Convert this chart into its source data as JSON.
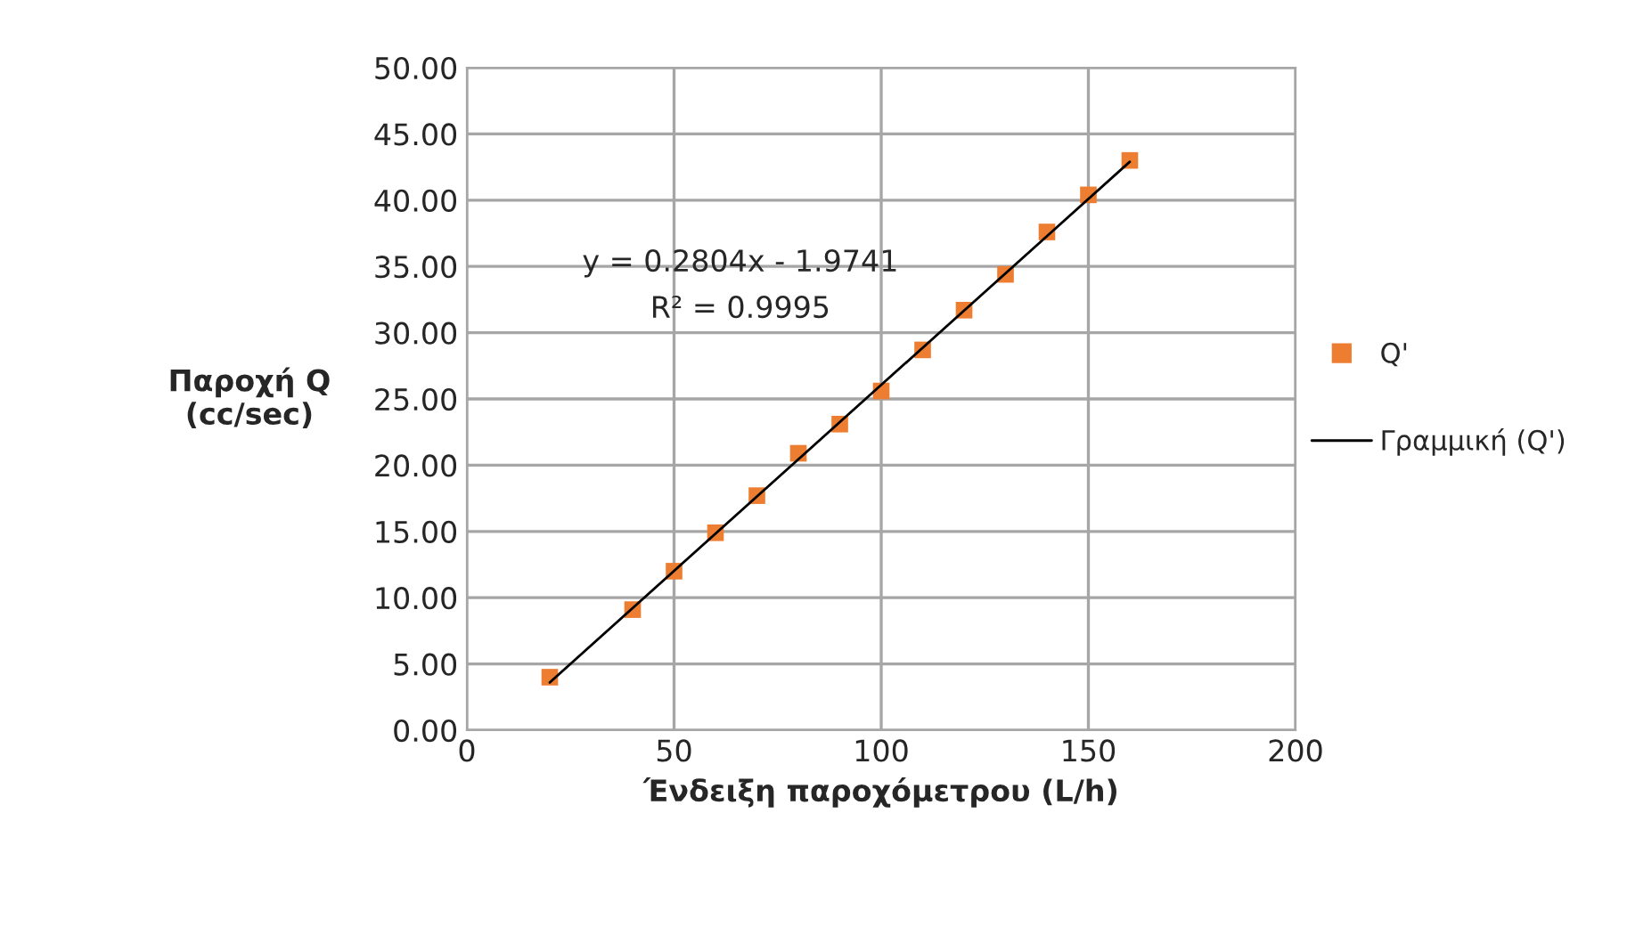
{
  "chart_data": {
    "type": "scatter",
    "xlabel": "Ένδειξη παροχόμετρου (L/h)",
    "ylabel": "Παροχή Q\n(cc/sec)",
    "x": [
      20,
      40,
      50,
      60,
      70,
      80,
      90,
      100,
      110,
      120,
      130,
      140,
      150,
      160
    ],
    "series": [
      {
        "name": "Q'",
        "type": "scatter",
        "color": "#ed7d31",
        "marker": "square",
        "values": [
          4.0,
          9.1,
          12.0,
          14.9,
          17.7,
          20.9,
          23.1,
          25.6,
          28.7,
          31.7,
          34.4,
          37.6,
          40.4,
          43.0
        ]
      },
      {
        "name": "Γραμμική (Q')",
        "type": "line",
        "color": "#000000",
        "line_style": "solid",
        "marker": "none",
        "x": [
          20,
          160
        ],
        "values": [
          3.6,
          42.9
        ]
      }
    ],
    "annotations": [
      "y = 0.2804x - 1.9741",
      "R² = 0.9995"
    ],
    "xlim": [
      0,
      200
    ],
    "xticks": [
      0,
      50,
      100,
      150,
      200
    ],
    "ylim": [
      0,
      50
    ],
    "yticks": [
      {
        "value": 0,
        "label": "0.00"
      },
      {
        "value": 5,
        "label": "5.00"
      },
      {
        "value": 10,
        "label": "10.00"
      },
      {
        "value": 15,
        "label": "15.00"
      },
      {
        "value": 20,
        "label": "20.00"
      },
      {
        "value": 25,
        "label": "25.00"
      },
      {
        "value": 30,
        "label": "30.00"
      },
      {
        "value": 35,
        "label": "35.00"
      },
      {
        "value": 40,
        "label": "40.00"
      },
      {
        "value": 45,
        "label": "45.00"
      },
      {
        "value": 50,
        "label": "50.00"
      }
    ],
    "grid": true,
    "legend": "right"
  }
}
